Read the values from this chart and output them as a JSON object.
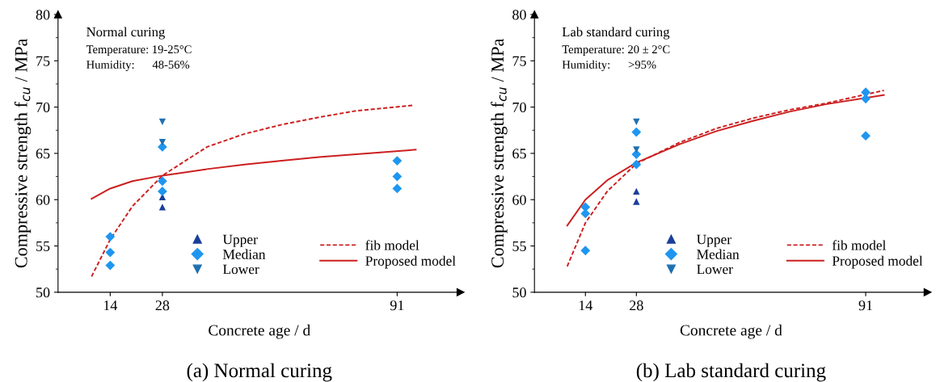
{
  "chart_data": [
    {
      "type": "scatter",
      "title": "(a) Normal curing",
      "xlabel": "Concrete age / d",
      "ylabel": "Compressive strength f$_{cu}$ / MPa",
      "annotations": [
        "Normal curing",
        "Temperature: 19-25°C",
        "Humidity:      48-56%"
      ],
      "xlim": [
        0,
        108
      ],
      "xticks": [
        14,
        28,
        91
      ],
      "ylim": [
        50,
        80
      ],
      "yticks": [
        50,
        55,
        60,
        65,
        70,
        75,
        80
      ],
      "grid": false,
      "legend": "bottom right",
      "series": [
        {
          "name": "Upper",
          "color": "#1a3f9a",
          "marker": "triangle",
          "x": [
            28,
            28
          ],
          "values": [
            60.3,
            59.2
          ]
        },
        {
          "name": "Median",
          "color": "#1e96f0",
          "marker": "diamond",
          "x": [
            14,
            14,
            14,
            28,
            28,
            28,
            91,
            91,
            91
          ],
          "values": [
            56.0,
            54.3,
            52.9,
            65.7,
            62.0,
            60.9,
            64.2,
            62.5,
            61.2
          ]
        },
        {
          "name": "Lower",
          "color": "#1f70b0",
          "marker": "triangle_down",
          "x": [
            28,
            28
          ],
          "values": [
            68.4,
            66.2
          ]
        },
        {
          "name": "fib model",
          "type": "line",
          "color": "#cc1f1f",
          "line_style": "dashed",
          "x": [
            9,
            14,
            20,
            28,
            40,
            50,
            60,
            70,
            80,
            95.5
          ],
          "values": [
            51.7,
            55.7,
            59.3,
            62.6,
            65.7,
            67.1,
            68.1,
            68.9,
            69.6,
            70.2
          ]
        },
        {
          "name": "Proposed model",
          "type": "line",
          "color": "#cc1f1f",
          "line_style": "solid",
          "x": [
            9,
            14,
            20,
            28,
            40,
            50,
            60,
            70,
            80,
            96
          ],
          "values": [
            60.1,
            61.2,
            62.0,
            62.6,
            63.3,
            63.8,
            64.2,
            64.6,
            64.9,
            65.4
          ]
        }
      ]
    },
    {
      "type": "scatter",
      "title": "(b) Lab standard curing",
      "xlabel": "Concrete age / d",
      "ylabel": "Compressive strength f$_{cu}$ / MPa",
      "annotations": [
        "Lab standard curing",
        "Temperature: 20 ± 2°C",
        "Humidity:      >95%"
      ],
      "xlim": [
        0,
        108
      ],
      "xticks": [
        14,
        28,
        91
      ],
      "ylim": [
        50,
        80
      ],
      "yticks": [
        50,
        55,
        60,
        65,
        70,
        75,
        80
      ],
      "grid": false,
      "legend": "bottom right",
      "series": [
        {
          "name": "Upper",
          "color": "#1a3f9a",
          "marker": "triangle",
          "x": [
            28,
            28
          ],
          "values": [
            60.9,
            59.8
          ]
        },
        {
          "name": "Median",
          "color": "#1e96f0",
          "marker": "diamond",
          "x": [
            14,
            14,
            14,
            28,
            28,
            28,
            91,
            91,
            91
          ],
          "values": [
            59.2,
            58.5,
            54.5,
            67.3,
            64.9,
            63.8,
            71.6,
            70.9,
            66.9
          ]
        },
        {
          "name": "Lower",
          "color": "#1f70b0",
          "marker": "triangle_down",
          "x": [
            28,
            28
          ],
          "values": [
            68.4,
            65.4
          ]
        },
        {
          "name": "fib model",
          "type": "line",
          "color": "#cc1f1f",
          "line_style": "dashed",
          "x": [
            9,
            14,
            20,
            28,
            40,
            50,
            60,
            70,
            80,
            96
          ],
          "values": [
            52.8,
            57.5,
            60.9,
            63.9,
            66.2,
            67.7,
            68.8,
            69.7,
            70.4,
            71.8
          ]
        },
        {
          "name": "Proposed model",
          "type": "line",
          "color": "#cc1f1f",
          "line_style": "solid",
          "x": [
            9,
            14,
            20,
            28,
            40,
            50,
            60,
            70,
            80,
            96
          ],
          "values": [
            57.2,
            60.0,
            62.1,
            64.0,
            66.0,
            67.4,
            68.5,
            69.5,
            70.3,
            71.3
          ]
        }
      ]
    }
  ]
}
